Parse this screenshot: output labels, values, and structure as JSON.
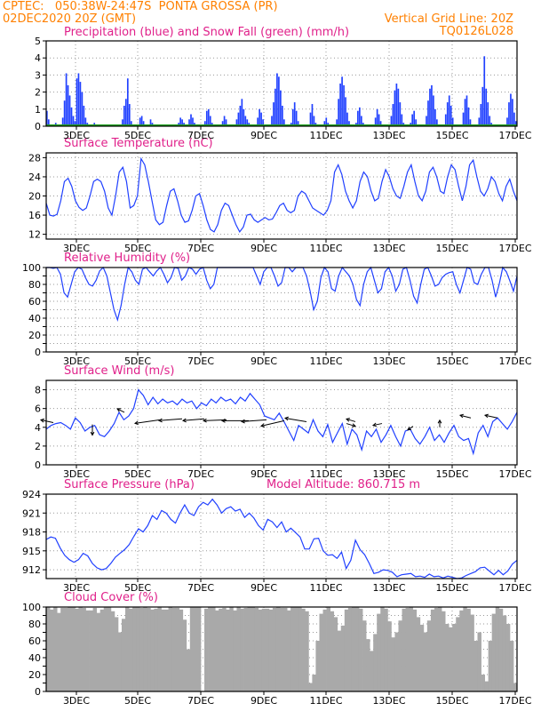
{
  "header": {
    "left1": "CPTEC:   050:38W-24:47S  PONTA GROSSA (PR)",
    "left2": "02DEC2020 20Z (GMT)",
    "right1": "Vertical Grid Line: 20Z",
    "right2": "TQ0126L028"
  },
  "colors": {
    "line": "#2040ff",
    "snow": "#20a020",
    "cloud": "#a9a9a9",
    "title": "#e0208a",
    "header": "#ff8000"
  },
  "x_tick_labels": [
    "3DEC",
    "5DEC",
    "7DEC",
    "9DEC",
    "11DEC",
    "13DEC",
    "15DEC",
    "17DEC"
  ],
  "chart_data": [
    {
      "type": "bar",
      "title": "Precipitation (blue) and Snow Fall (green) (mm/h)",
      "ylim": [
        0,
        5
      ],
      "yticks": [
        0,
        1,
        2,
        3,
        4,
        5
      ],
      "grid": true,
      "x_range": [
        "02DEC2020 20Z",
        "17DEC2020 00Z"
      ],
      "series": [
        {
          "name": "Precipitation",
          "values": [
            0.9,
            0.4,
            0,
            0,
            0,
            0.2,
            0,
            0,
            0,
            0.5,
            1.5,
            3.1,
            2.4,
            1.8,
            1.1,
            0.6,
            0.3,
            2.8,
            3.1,
            2.6,
            2.0,
            1.2,
            0.5,
            0.2,
            0,
            0,
            0,
            0.2,
            0,
            0,
            0,
            0,
            0,
            0,
            0,
            0,
            0,
            0,
            0,
            0,
            0,
            0,
            0,
            0.4,
            1.2,
            1.6,
            2.8,
            1.3,
            0.3,
            0,
            0,
            0,
            0,
            0.5,
            0.6,
            0.3,
            0,
            0,
            0,
            0.4,
            0.2,
            0,
            0,
            0,
            0,
            0,
            0,
            0,
            0,
            0,
            0,
            0,
            0,
            0,
            0,
            0.2,
            0.5,
            0.4,
            0.2,
            0,
            0,
            0.4,
            0.7,
            0.5,
            0.2,
            0,
            0,
            0,
            0,
            0,
            0.3,
            0.9,
            1.0,
            0.6,
            0.2,
            0,
            0,
            0,
            0,
            0,
            0.3,
            0.6,
            0.4,
            0,
            0,
            0,
            0,
            0,
            0.4,
            0.8,
            1.2,
            1.6,
            1.0,
            0.6,
            0.4,
            0.2,
            0,
            0,
            0,
            0,
            0.5,
            1.0,
            0.8,
            0.4,
            0,
            0,
            0,
            0,
            0.6,
            1.4,
            2.2,
            3.1,
            2.9,
            2.1,
            1.2,
            0.4,
            0,
            0,
            0,
            0.2,
            1.0,
            1.4,
            0.9,
            0.3,
            0,
            0,
            0,
            0,
            0,
            0,
            0.8,
            1.3,
            0.6,
            0.2,
            0,
            0,
            0,
            0,
            0.3,
            0.5,
            0.2,
            0,
            0,
            0,
            0,
            0.4,
            1.6,
            2.5,
            2.9,
            2.4,
            1.7,
            0.8,
            0.3,
            0,
            0,
            0,
            0.2,
            0.9,
            1.1,
            0.6,
            0.2,
            0,
            0,
            0,
            0,
            0,
            0,
            0.5,
            1.0,
            0.7,
            0.3,
            0,
            0,
            0,
            0,
            0,
            0.6,
            1.3,
            2.1,
            2.5,
            2.2,
            1.4,
            0.7,
            0.2,
            0,
            0,
            0,
            0.2,
            0.7,
            0.9,
            0.4,
            0,
            0,
            0,
            0,
            0,
            0.6,
            1.5,
            2.2,
            2.4,
            1.8,
            1.0,
            0.4,
            0,
            0,
            0,
            0,
            0.7,
            1.4,
            1.8,
            1.2,
            0.5,
            0.1,
            0,
            0,
            0,
            0,
            0.8,
            1.6,
            1.8,
            1.1,
            0.4,
            0,
            0,
            0,
            0,
            0.5,
            1.3,
            2.3,
            4.1,
            2.2,
            1.4,
            0.6,
            0.2,
            0,
            0,
            0,
            0,
            0,
            0,
            0,
            0,
            0.5,
            1.4,
            1.9,
            1.6,
            0.8,
            0.3
          ]
        },
        {
          "name": "Snow Fall",
          "values": [
            0
          ]
        }
      ]
    },
    {
      "type": "line",
      "title": "Surface Temperature (nC)",
      "ylim": [
        11,
        29
      ],
      "yticks": [
        12,
        16,
        20,
        24,
        28
      ],
      "grid": true,
      "series": [
        {
          "name": "Temperature",
          "values": [
            18.5,
            16.0,
            15.8,
            16.2,
            19.0,
            23.0,
            23.7,
            22.0,
            19.0,
            17.6,
            17.0,
            17.5,
            20.0,
            23.0,
            23.5,
            23.0,
            21.0,
            17.5,
            16.0,
            20.0,
            25.0,
            26.0,
            23.0,
            17.5,
            18.0,
            20.0,
            27.8,
            26.5,
            23.0,
            19.0,
            15.0,
            14.0,
            14.5,
            18.0,
            21.0,
            21.5,
            19.0,
            16.0,
            14.5,
            14.8,
            17.0,
            20.0,
            20.5,
            18.0,
            15.0,
            13.0,
            12.5,
            14.0,
            17.0,
            18.5,
            18.0,
            16.0,
            14.0,
            12.5,
            13.5,
            16.0,
            16.2,
            15.0,
            14.5,
            15.0,
            15.5,
            15.0,
            15.2,
            16.5,
            18.0,
            18.5,
            17.0,
            16.5,
            17.0,
            20.0,
            21.0,
            20.5,
            19.0,
            17.5,
            17.0,
            16.5,
            16.0,
            17.0,
            19.0,
            25.0,
            26.5,
            24.5,
            21.0,
            19.0,
            17.5,
            19.0,
            23.0,
            25.0,
            24.0,
            21.0,
            19.0,
            19.5,
            23.0,
            25.5,
            24.0,
            21.5,
            20.0,
            19.5,
            22.0,
            25.0,
            26.5,
            23.0,
            20.0,
            19.0,
            21.0,
            25.0,
            26.0,
            24.0,
            21.0,
            20.5,
            24.0,
            26.5,
            25.5,
            22.0,
            19.0,
            22.0,
            26.5,
            27.5,
            24.0,
            21.0,
            20.0,
            21.5,
            24.0,
            23.0,
            20.5,
            19.0,
            22.0,
            23.5,
            21.0,
            19.0
          ]
        }
      ]
    },
    {
      "type": "line",
      "title": "Relative Humidity (%)",
      "ylim": [
        0,
        100
      ],
      "yticks": [
        0,
        10,
        20,
        30,
        40,
        50,
        60,
        70,
        80,
        90,
        100
      ],
      "ylabels": [
        0,
        20,
        40,
        60,
        80,
        100
      ],
      "grid": true,
      "series": [
        {
          "name": "Relative Humidity",
          "values": [
            100,
            100,
            99,
            100,
            92,
            70,
            65,
            80,
            95,
            100,
            98,
            88,
            80,
            78,
            85,
            96,
            100,
            90,
            70,
            50,
            38,
            55,
            80,
            100,
            95,
            85,
            80,
            98,
            100,
            95,
            90,
            96,
            100,
            92,
            82,
            88,
            100,
            99,
            85,
            90,
            100,
            98,
            92,
            98,
            100,
            85,
            75,
            80,
            100,
            100,
            100,
            100,
            100,
            100,
            100,
            100,
            100,
            100,
            100,
            90,
            80,
            95,
            100,
            100,
            90,
            78,
            82,
            100,
            100,
            95,
            100,
            100,
            100,
            90,
            72,
            50,
            60,
            88,
            100,
            95,
            75,
            72,
            90,
            100,
            95,
            90,
            80,
            62,
            55,
            80,
            95,
            100,
            85,
            70,
            75,
            95,
            100,
            90,
            72,
            80,
            98,
            100,
            85,
            66,
            58,
            80,
            98,
            100,
            90,
            78,
            80,
            88,
            92,
            94,
            95,
            80,
            70,
            85,
            100,
            98,
            82,
            80,
            92,
            100,
            100,
            85,
            65,
            80,
            100,
            95,
            84,
            72,
            90
          ]
        }
      ]
    },
    {
      "type": "line",
      "title": "Surface Wind (m/s)",
      "ylim": [
        0,
        9
      ],
      "yticks": [
        0,
        2,
        4,
        6,
        8
      ],
      "grid": true,
      "series": [
        {
          "name": "Wind Speed",
          "values": [
            3.8,
            4.2,
            4.4,
            4.5,
            4.2,
            3.8,
            5.0,
            4.5,
            3.6,
            4.0,
            4.2,
            3.2,
            3.0,
            3.6,
            4.4,
            5.6,
            4.8,
            5.2,
            6.0,
            8.0,
            7.4,
            6.4,
            7.2,
            6.5,
            7.0,
            6.6,
            6.8,
            6.4,
            7.0,
            6.6,
            6.8,
            6.0,
            6.6,
            6.3,
            7.0,
            6.6,
            7.2,
            6.8,
            7.0,
            6.5,
            7.2,
            6.8,
            7.6,
            7.0,
            6.4,
            5.2,
            5.0,
            4.8,
            5.5,
            4.6,
            3.6,
            2.6,
            4.2,
            3.8,
            3.4,
            4.8,
            3.6,
            3.0,
            4.3,
            2.4,
            3.4,
            4.4,
            2.2,
            3.8,
            3.2,
            1.6,
            3.6,
            3.0,
            3.8,
            2.4,
            3.2,
            4.2,
            3.0,
            2.0,
            3.6,
            3.8,
            2.8,
            2.2,
            3.0,
            4.0,
            2.6,
            3.2,
            2.4,
            3.4,
            4.2,
            3.0,
            2.6,
            2.8,
            1.2,
            3.4,
            4.2,
            3.0,
            4.6,
            5.0,
            4.4,
            3.8,
            4.6,
            5.6
          ]
        }
      ],
      "arrows": true
    },
    {
      "type": "line",
      "title": "Surface Pressure (hPa)",
      "annotation": "Model Altitude: 860.715 m",
      "ylim": [
        910.6,
        924
      ],
      "yticks": [
        912,
        915,
        918,
        921,
        924
      ],
      "grid": true,
      "series": [
        {
          "name": "Pressure",
          "values": [
            916.8,
            917.2,
            917.0,
            915.5,
            914.3,
            913.6,
            913.2,
            913.6,
            914.6,
            914.2,
            913.0,
            912.3,
            912.0,
            912.2,
            913.0,
            914.0,
            914.6,
            915.2,
            916.0,
            917.3,
            918.5,
            918.0,
            919.0,
            920.6,
            920.0,
            921.4,
            921.0,
            920.0,
            919.4,
            921.0,
            922.3,
            921.0,
            920.6,
            922.0,
            922.7,
            922.3,
            923.2,
            922.3,
            921.0,
            921.7,
            922.0,
            921.3,
            921.6,
            920.3,
            921.0,
            920.2,
            919.0,
            918.3,
            920.0,
            919.6,
            918.7,
            919.6,
            918.0,
            918.6,
            917.9,
            917.2,
            915.3,
            915.3,
            916.9,
            917.0,
            915.0,
            914.3,
            914.4,
            913.8,
            914.8,
            912.2,
            913.5,
            916.7,
            915.2,
            914.4,
            913.0,
            911.4,
            911.6,
            912.0,
            911.9,
            911.6,
            910.9,
            911.2,
            911.3,
            911.4,
            910.9,
            911.0,
            910.8,
            911.3,
            910.9,
            911.0,
            910.7,
            911.0,
            910.8,
            910.6,
            910.7,
            911.1,
            911.4,
            911.7,
            912.3,
            912.4,
            911.8,
            911.2,
            911.9,
            911.2,
            911.8,
            912.9,
            913.5
          ]
        }
      ]
    },
    {
      "type": "area",
      "title": "Cloud Cover (%)",
      "ylim": [
        0,
        100
      ],
      "yticks": [
        0,
        10,
        20,
        30,
        40,
        50,
        60,
        70,
        80,
        90,
        100
      ],
      "ylabels": [
        0,
        20,
        40,
        60,
        80,
        100
      ],
      "grid": true,
      "series": [
        {
          "name": "Cloud Cover",
          "values": [
            100,
            97,
            100,
            93,
            99,
            99,
            100,
            100,
            98,
            100,
            99,
            96,
            96,
            99,
            93,
            97,
            100,
            100,
            95,
            88,
            70,
            86,
            100,
            98,
            100,
            100,
            99,
            100,
            99,
            97,
            98,
            100,
            97,
            97,
            100,
            99,
            99,
            97,
            85,
            50,
            100,
            100,
            100,
            0,
            98,
            100,
            100,
            96,
            98,
            99,
            97,
            100,
            96,
            100,
            98,
            99,
            100,
            100,
            99,
            97,
            98,
            98,
            97,
            99,
            100,
            99,
            99,
            96,
            100,
            100,
            100,
            98,
            95,
            10,
            20,
            60,
            92,
            97,
            100,
            95,
            88,
            72,
            78,
            97,
            99,
            100,
            100,
            98,
            84,
            62,
            48,
            68,
            92,
            100,
            98,
            83,
            64,
            70,
            84,
            98,
            99,
            100,
            97,
            88,
            79,
            70,
            84,
            97,
            99,
            100,
            95,
            80,
            76,
            80,
            88,
            96,
            100,
            98,
            91,
            60,
            70,
            20,
            12,
            60,
            92,
            100,
            98,
            90,
            80,
            60,
            10
          ]
        }
      ]
    }
  ]
}
